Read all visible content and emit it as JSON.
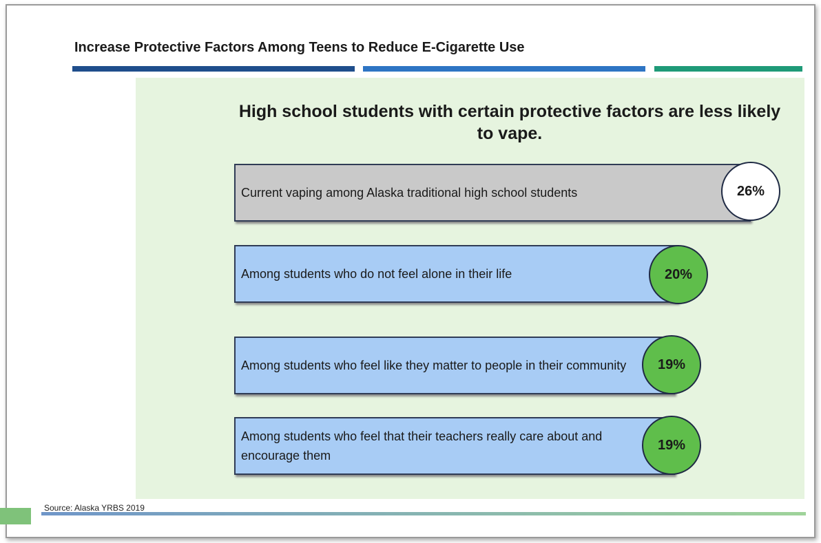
{
  "header": {
    "title": "Increase Protective Factors Among Teens to Reduce E-Cigarette Use"
  },
  "heading": "High school students with certain protective factors are less likely to vape.",
  "rows": [
    {
      "label": "Current vaping among Alaska traditional high school students",
      "value": "26%"
    },
    {
      "label": "Among students who do not feel alone in their life",
      "value": "20%"
    },
    {
      "label": "Among students who feel like they matter to people in their community",
      "value": "19%"
    },
    {
      "label": "Among students who feel that their teachers really care about and encourage them",
      "value": "19%"
    }
  ],
  "source": "Source: Alaska YRBS 2019"
}
